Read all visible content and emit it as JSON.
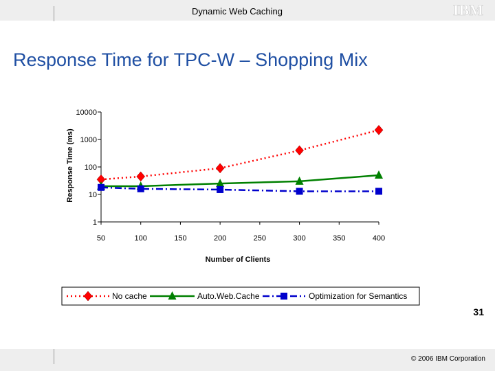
{
  "header": {
    "title": "Dynamic Web Caching",
    "logo_text": "IBM"
  },
  "slide": {
    "title": "Response Time for TPC-W – Shopping Mix"
  },
  "chart_data": {
    "type": "line",
    "title": "",
    "xlabel": "Number of Clients",
    "ylabel": "Response Time (ms)",
    "yscale": "log",
    "ylim": [
      1,
      10000
    ],
    "xlim": [
      50,
      400
    ],
    "x_ticks": [
      50,
      100,
      150,
      200,
      250,
      300,
      350,
      400
    ],
    "y_ticks": [
      1,
      10,
      100,
      1000,
      10000
    ],
    "x": [
      50,
      100,
      200,
      300,
      400
    ],
    "series": [
      {
        "name": "No cache",
        "color": "#ff0000",
        "marker_color": "#ff0000",
        "marker": "diamond",
        "dash": "2,4",
        "values": [
          35,
          45,
          90,
          400,
          2200
        ]
      },
      {
        "name": "Auto.Web.Cache",
        "color": "#008000",
        "marker_color": "#008000",
        "marker": "triangle",
        "dash": "",
        "values": [
          20,
          20,
          25,
          30,
          50
        ]
      },
      {
        "name": "Optimization for Semantics",
        "color": "#0000cc",
        "marker_color": "#0000cc",
        "marker": "square",
        "dash": "10,4,2,4",
        "values": [
          18,
          16,
          15,
          13,
          13
        ]
      }
    ],
    "legend_position": "bottom",
    "grid": false
  },
  "footer": {
    "page_number": "31",
    "copyright": "© 2006 IBM Corporation"
  }
}
